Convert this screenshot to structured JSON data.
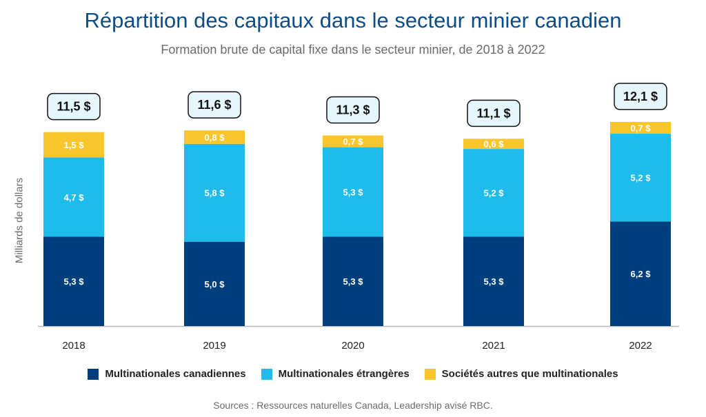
{
  "title": "Répartition des capitaux dans le secteur minier canadien",
  "subtitle": "Formation brute de capital fixe dans le secteur minier, de 2018 à 2022",
  "source": "Sources : Ressources naturelles Canada, Leadership avisé RBC.",
  "colors": {
    "canadian": "#003f7d",
    "foreign": "#1fbbeb",
    "other": "#fbc62c",
    "total_box_fill": "#e6f6fd"
  },
  "chart_data": {
    "type": "bar",
    "stacked": true,
    "ylabel": "Milliards de dollars",
    "ylim": [
      0,
      13
    ],
    "grid": false,
    "legend": "bottom",
    "categories": [
      "2018",
      "2019",
      "2020",
      "2021",
      "2022"
    ],
    "series": [
      {
        "name": "Multinationales canadiennes",
        "values": [
          5.3,
          5.0,
          5.3,
          5.3,
          6.2
        ],
        "labels": [
          "5,3 $",
          "5,0 $",
          "5,3 $",
          "5,3 $",
          "6,2 $"
        ]
      },
      {
        "name": "Multinationales étrangères",
        "values": [
          4.7,
          5.8,
          5.3,
          5.2,
          5.2
        ],
        "labels": [
          "4,7 $",
          "5,8 $",
          "5,3 $",
          "5,2 $",
          "5,2 $"
        ]
      },
      {
        "name": "Sociétés autres que multinationales",
        "values": [
          1.5,
          0.8,
          0.7,
          0.6,
          0.7
        ],
        "labels": [
          "1,5 $",
          "0,8 $",
          "0,7 $",
          "0,6 $",
          "0,7 $"
        ]
      }
    ],
    "totals": [
      "11,5 $",
      "11,6 $",
      "11,3 $",
      "11,1 $",
      "12,1 $"
    ]
  }
}
